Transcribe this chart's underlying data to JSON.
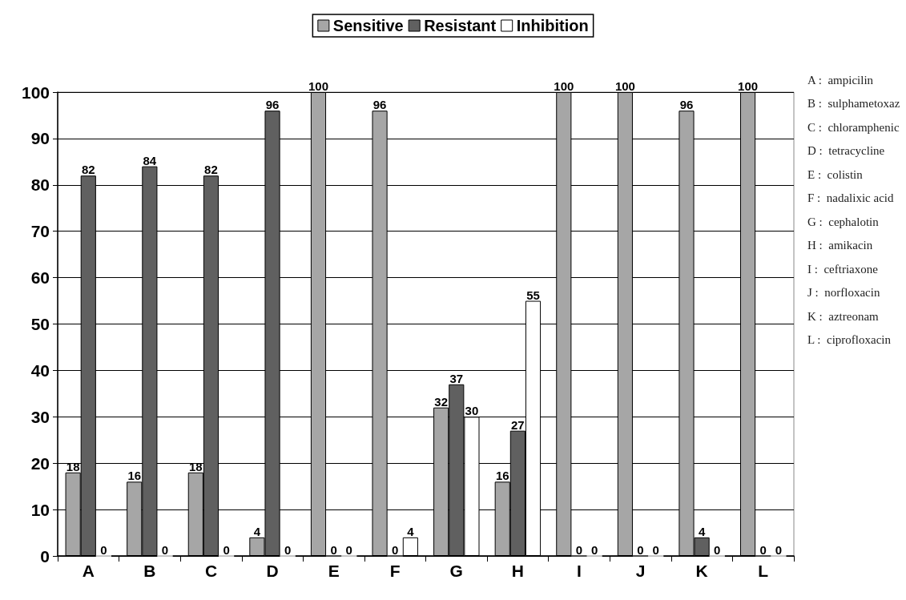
{
  "chart_data": {
    "type": "bar",
    "categories": [
      "A",
      "B",
      "C",
      "D",
      "E",
      "F",
      "G",
      "H",
      "I",
      "J",
      "K",
      "L"
    ],
    "series": [
      {
        "name": "Sensitive",
        "color": "#a6a6a6",
        "values": [
          18,
          16,
          18,
          4,
          100,
          96,
          32,
          16,
          100,
          100,
          96,
          100
        ]
      },
      {
        "name": "Resistant",
        "color": "#606060",
        "values": [
          82,
          84,
          82,
          96,
          0,
          0,
          37,
          27,
          0,
          0,
          4,
          0
        ]
      },
      {
        "name": "Inhibition",
        "color": "#ffffff",
        "values": [
          0,
          0,
          0,
          0,
          0,
          4,
          30,
          55,
          0,
          0,
          0,
          0
        ]
      }
    ],
    "ylim": [
      0,
      100
    ],
    "yticks": [
      0,
      10,
      20,
      30,
      40,
      50,
      60,
      70,
      80,
      90,
      100
    ],
    "grid": "y",
    "legend": "top",
    "data_labels": true,
    "annotations": [
      "A :  ampicilin",
      "B :  sulphametoxaz",
      "C :  chloramphenic",
      "D :  tetracycline",
      "E :  colistin",
      "F :  nadalixic acid",
      "G :  cephalotin",
      "H :  amikacin",
      "I :  ceftriaxone",
      "J :  norfloxacin",
      "K :  aztreonam",
      "L :  ciprofloxacin"
    ]
  }
}
